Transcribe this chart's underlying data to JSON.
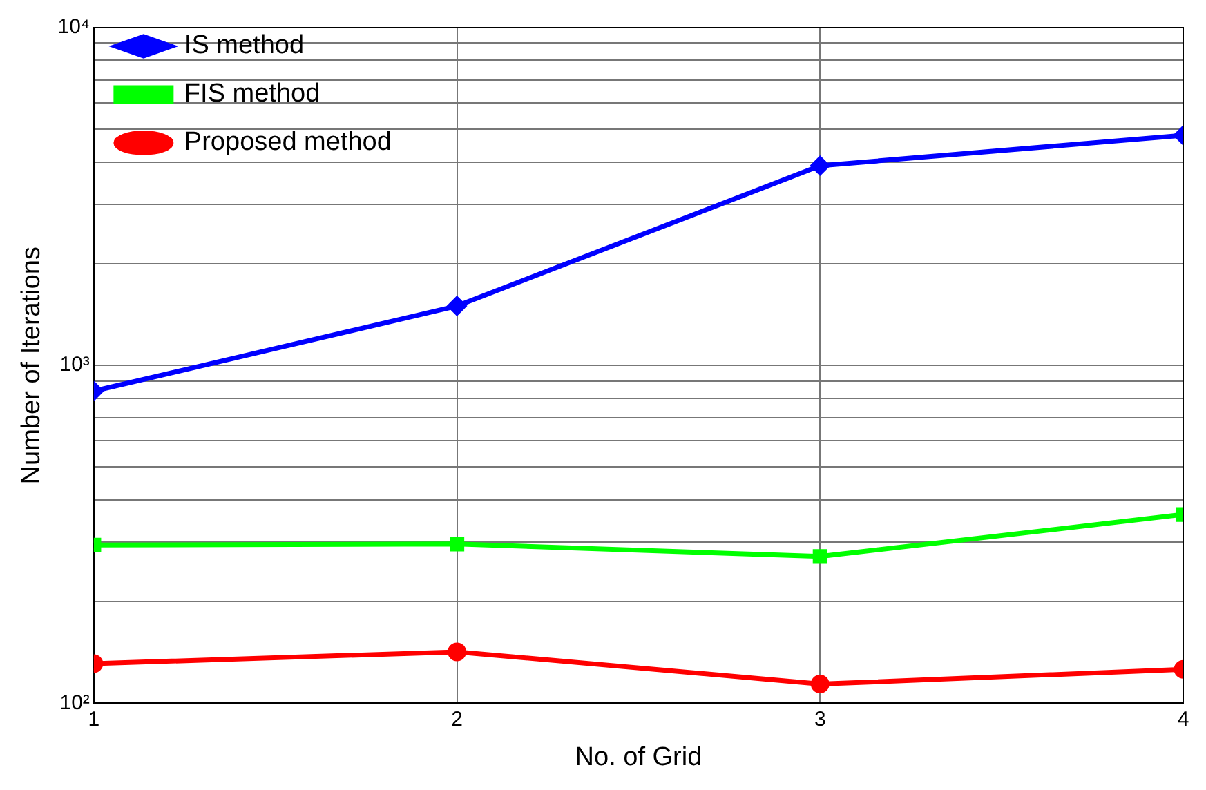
{
  "chart_data": {
    "type": "line",
    "xlabel": "No. of Grid",
    "ylabel": "Number of Iterations",
    "x": [
      1,
      2,
      3,
      4
    ],
    "xlim": [
      1,
      4
    ],
    "xticks": [
      1,
      2,
      3,
      4
    ],
    "ylim": [
      100,
      10000
    ],
    "log": true,
    "grid": true,
    "legend": "top left",
    "line_style": "solid",
    "yticks": [
      {
        "value": 100,
        "label": "10²"
      },
      {
        "value": 200,
        "label": null
      },
      {
        "value": 300,
        "label": null
      },
      {
        "value": 400,
        "label": null
      },
      {
        "value": 500,
        "label": null
      },
      {
        "value": 600,
        "label": null
      },
      {
        "value": 700,
        "label": null
      },
      {
        "value": 800,
        "label": null
      },
      {
        "value": 900,
        "label": null
      },
      {
        "value": 1000,
        "label": "10³"
      },
      {
        "value": 2000,
        "label": null
      },
      {
        "value": 3000,
        "label": null
      },
      {
        "value": 4000,
        "label": null
      },
      {
        "value": 5000,
        "label": null
      },
      {
        "value": 6000,
        "label": null
      },
      {
        "value": 7000,
        "label": null
      },
      {
        "value": 8000,
        "label": null
      },
      {
        "value": 9000,
        "label": null
      },
      {
        "value": 10000,
        "label": "10⁴"
      }
    ],
    "series": [
      {
        "name": "IS method",
        "color": "#0000ff",
        "marker": "diamond",
        "values": [
          840,
          1500,
          3900,
          4800
        ]
      },
      {
        "name": "FIS method",
        "color": "#00ff00",
        "marker": "square",
        "values": [
          294,
          296,
          272,
          362
        ]
      },
      {
        "name": "Proposed method",
        "color": "#ff0000",
        "marker": "circle",
        "values": [
          131,
          142,
          114,
          126
        ]
      }
    ]
  }
}
